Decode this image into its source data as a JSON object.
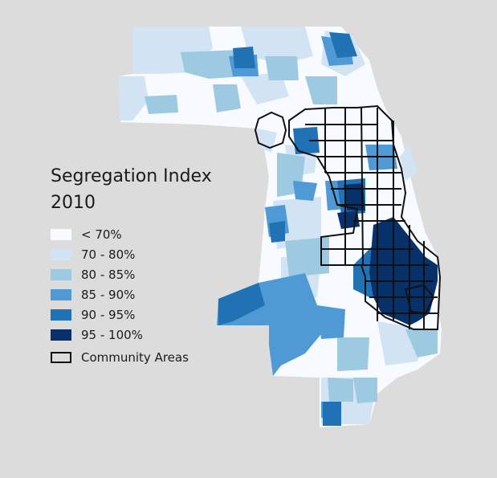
{
  "legend": {
    "title_line1": "Segregation Index",
    "title_line2": "2010",
    "classes": [
      {
        "label": "< 70%",
        "color": "#f7fbff"
      },
      {
        "label": "70 - 80%",
        "color": "#d2e3f3"
      },
      {
        "label": "80 - 85%",
        "color": "#9ecae1"
      },
      {
        "label": "85 - 90%",
        "color": "#4f9ad4"
      },
      {
        "label": "90 - 95%",
        "color": "#2171b5"
      },
      {
        "label": "95 - 100%",
        "color": "#08306b"
      }
    ],
    "community_areas_label": "Community Areas"
  },
  "colors": {
    "background": "#dcdcdc",
    "boundary": "#111111"
  }
}
